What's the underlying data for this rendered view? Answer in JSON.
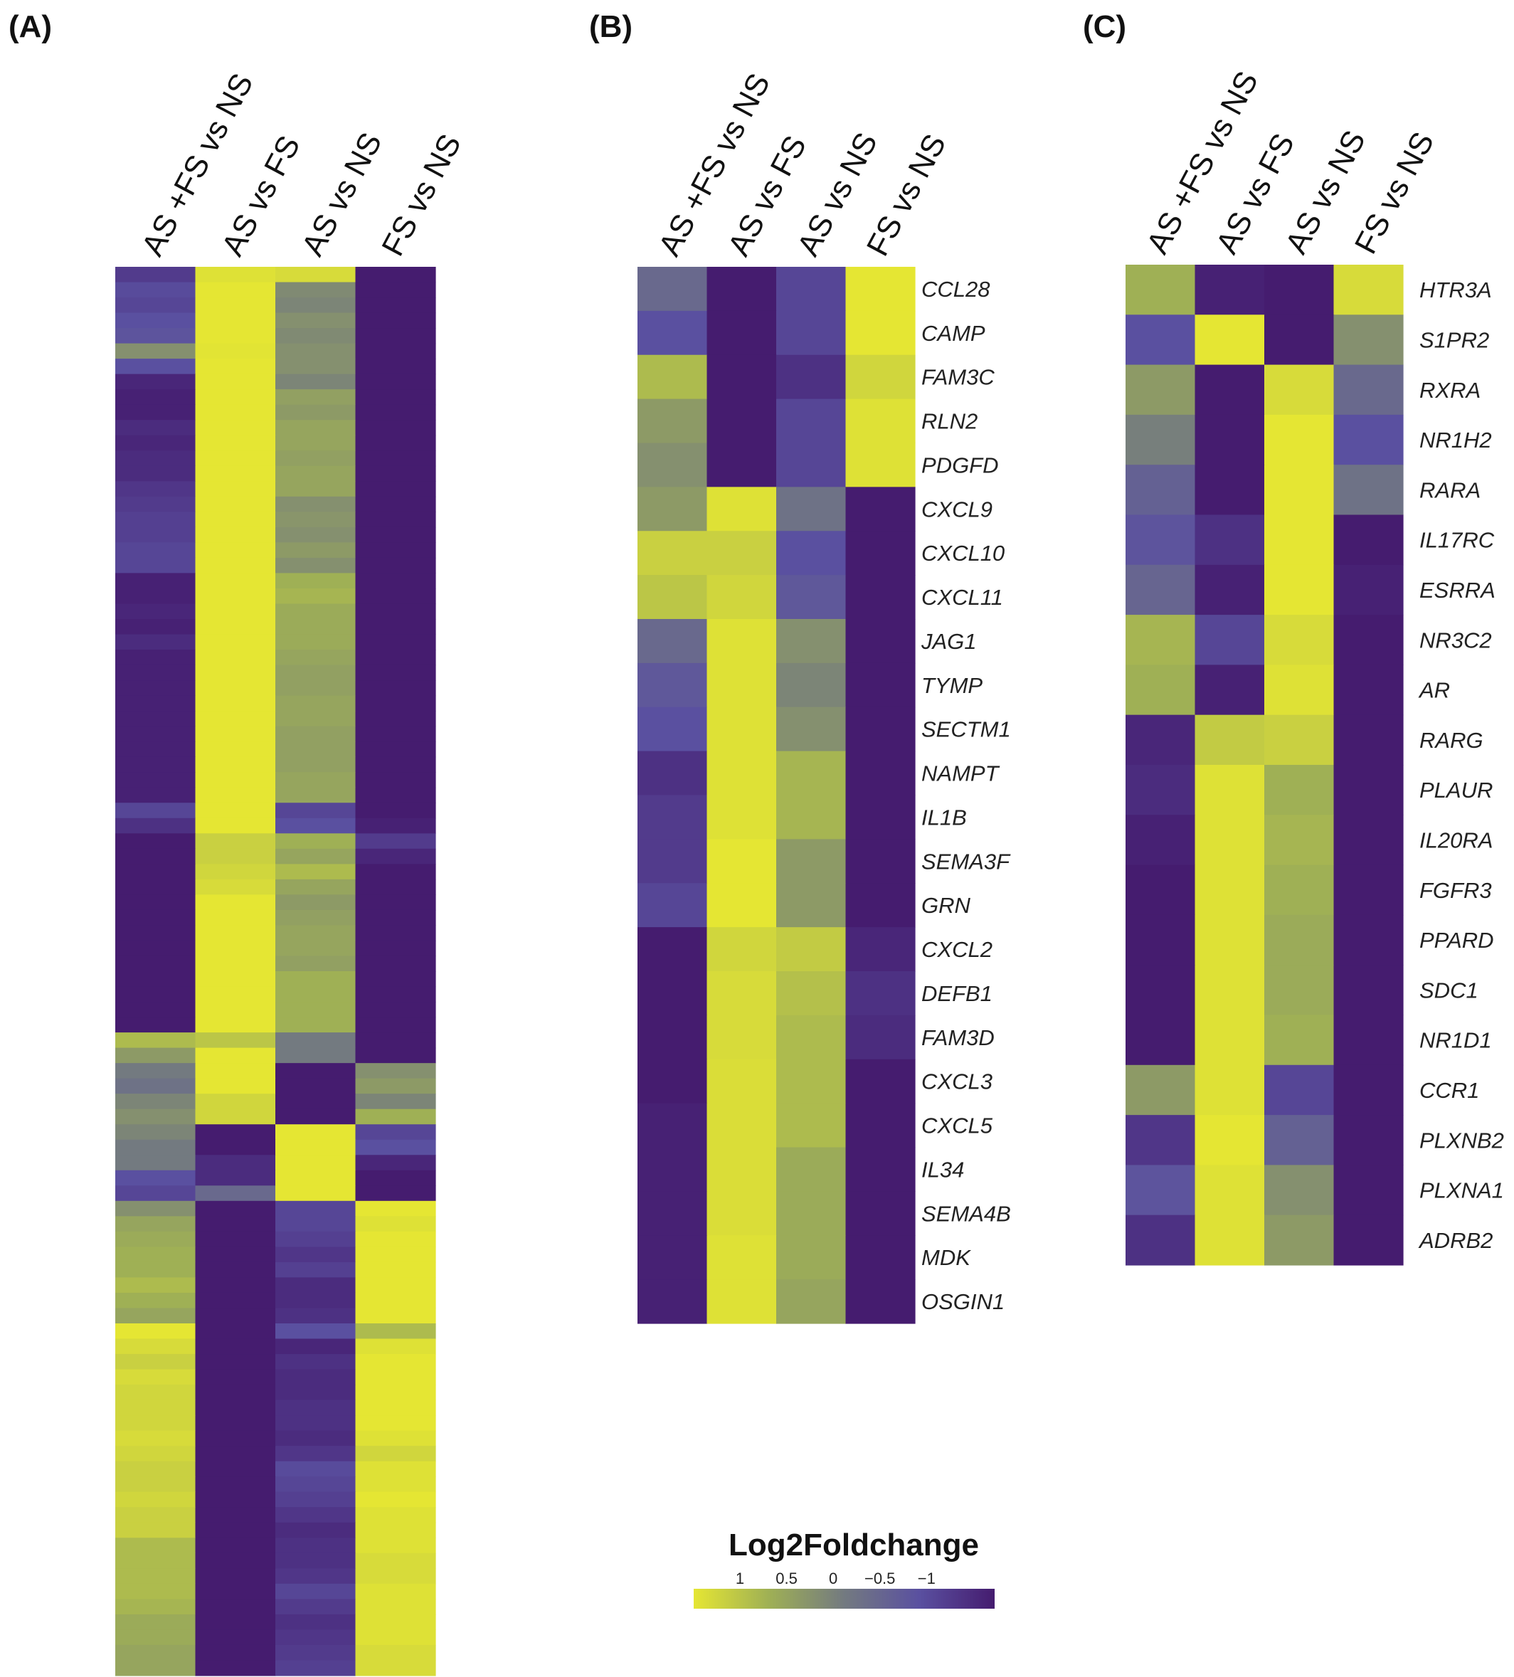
{
  "chart_data": [
    {
      "type": "heatmap",
      "panel": "(A)",
      "columns": [
        "AS +FS vs NS",
        "AS  vs FS",
        "AS  vs NS",
        "FS  vs NS"
      ],
      "rows": [],
      "values": [
        [
          -0.7,
          0.95,
          0.9,
          -1
        ],
        [
          -0.55,
          1,
          0.15,
          -1
        ],
        [
          -0.6,
          1,
          0.1,
          -1
        ],
        [
          -0.5,
          1,
          0.2,
          -1
        ],
        [
          -0.45,
          1,
          0.15,
          -1
        ],
        [
          0.2,
          0.98,
          0.2,
          -1
        ],
        [
          -0.5,
          1,
          0.2,
          -1
        ],
        [
          -0.9,
          1,
          0.1,
          -1
        ],
        [
          -0.95,
          1,
          0.35,
          -1
        ],
        [
          -0.95,
          1,
          0.3,
          -1
        ],
        [
          -0.85,
          1,
          0.4,
          -1
        ],
        [
          -0.9,
          1,
          0.4,
          -1
        ],
        [
          -0.85,
          1,
          0.35,
          -1
        ],
        [
          -0.85,
          1,
          0.4,
          -1
        ],
        [
          -0.75,
          1,
          0.4,
          -1
        ],
        [
          -0.7,
          1,
          0.2,
          -1
        ],
        [
          -0.65,
          1,
          0.25,
          -1
        ],
        [
          -0.65,
          1,
          0.2,
          -1
        ],
        [
          -0.6,
          1,
          0.3,
          -1
        ],
        [
          -0.6,
          1,
          0.2,
          -1
        ],
        [
          -0.95,
          1,
          0.5,
          -1
        ],
        [
          -0.95,
          1,
          0.55,
          -1
        ],
        [
          -0.9,
          1,
          0.45,
          -1
        ],
        [
          -0.95,
          1,
          0.45,
          -1
        ],
        [
          -0.85,
          1,
          0.45,
          -1
        ],
        [
          -0.95,
          1,
          0.4,
          -1
        ],
        [
          -0.95,
          1,
          0.35,
          -1
        ],
        [
          -0.95,
          1,
          0.35,
          -1
        ],
        [
          -0.95,
          1,
          0.4,
          -1
        ],
        [
          -0.95,
          1,
          0.4,
          -1
        ],
        [
          -0.95,
          1,
          0.35,
          -1
        ],
        [
          -0.95,
          1,
          0.35,
          -1
        ],
        [
          -0.95,
          1,
          0.35,
          -1
        ],
        [
          -0.95,
          1,
          0.4,
          -1
        ],
        [
          -0.95,
          1,
          0.4,
          -1
        ],
        [
          -0.6,
          1,
          -0.6,
          -1
        ],
        [
          -0.8,
          1,
          -0.5,
          -0.95
        ],
        [
          -1,
          0.8,
          0.5,
          -0.7
        ],
        [
          -1,
          0.8,
          0.4,
          -0.9
        ],
        [
          -1,
          0.85,
          0.6,
          -1
        ],
        [
          -1,
          0.9,
          0.4,
          -1
        ],
        [
          -1,
          1,
          0.3,
          -1
        ],
        [
          -1,
          1,
          0.35,
          -1
        ],
        [
          -1,
          1,
          0.4,
          -1
        ],
        [
          -1,
          1,
          0.4,
          -1
        ],
        [
          -1,
          1,
          0.35,
          -1
        ],
        [
          -1,
          1,
          0.5,
          -1
        ],
        [
          -1,
          1,
          0.5,
          -1
        ],
        [
          -1,
          1,
          0.5,
          -1
        ],
        [
          -1,
          1,
          0.5,
          -1
        ],
        [
          0.6,
          0.7,
          0,
          -1
        ],
        [
          0.3,
          1,
          0,
          -1
        ],
        [
          0,
          1,
          -1,
          0.2
        ],
        [
          -0.1,
          1,
          -1,
          0.3
        ],
        [
          0.1,
          0.85,
          -1,
          0.1
        ],
        [
          0.2,
          0.85,
          -1,
          0.5
        ],
        [
          0.1,
          -1,
          1,
          -0.6
        ],
        [
          0,
          -1,
          1,
          -0.5
        ],
        [
          0,
          -0.85,
          1,
          -0.9
        ],
        [
          -0.5,
          -0.85,
          1,
          -1
        ],
        [
          -0.6,
          -0.2,
          1,
          -1
        ],
        [
          0.2,
          -1,
          -0.6,
          1
        ],
        [
          0.4,
          -1,
          -0.6,
          0.95
        ],
        [
          0.45,
          -1,
          -0.65,
          1
        ],
        [
          0.5,
          -1,
          -0.75,
          1
        ],
        [
          0.5,
          -1,
          -0.65,
          1
        ],
        [
          0.6,
          -1,
          -0.85,
          1
        ],
        [
          0.5,
          -1,
          -0.85,
          1
        ],
        [
          0.4,
          -1,
          -0.8,
          1
        ],
        [
          1,
          -1,
          -0.5,
          0.6
        ],
        [
          0.9,
          -1,
          -0.9,
          0.95
        ],
        [
          0.8,
          -1,
          -0.8,
          1
        ],
        [
          0.9,
          -1,
          -0.85,
          1
        ],
        [
          0.85,
          -1,
          -0.85,
          1
        ],
        [
          0.85,
          -1,
          -0.8,
          1
        ],
        [
          0.85,
          -1,
          -0.8,
          1
        ],
        [
          0.9,
          -1,
          -0.85,
          0.95
        ],
        [
          0.85,
          -1,
          -0.75,
          0.85
        ],
        [
          0.8,
          -1,
          -0.55,
          0.95
        ],
        [
          0.8,
          -1,
          -0.6,
          0.95
        ],
        [
          0.85,
          -1,
          -0.65,
          1
        ],
        [
          0.8,
          -1,
          -0.75,
          0.95
        ],
        [
          0.8,
          -1,
          -0.85,
          0.95
        ],
        [
          0.6,
          -1,
          -0.8,
          0.95
        ],
        [
          0.6,
          -1,
          -0.8,
          0.9
        ],
        [
          0.6,
          -1,
          -0.75,
          0.9
        ],
        [
          0.6,
          -1,
          -0.6,
          0.95
        ],
        [
          0.55,
          -1,
          -0.7,
          0.95
        ],
        [
          0.45,
          -1,
          -0.8,
          0.95
        ],
        [
          0.45,
          -1,
          -0.75,
          0.95
        ],
        [
          0.4,
          -1,
          -0.7,
          0.9
        ],
        [
          0.4,
          -1,
          -0.65,
          0.9
        ]
      ]
    },
    {
      "type": "heatmap",
      "panel": "(B)",
      "columns": [
        "AS +FS vs NS",
        "AS  vs FS",
        "AS  vs NS",
        "FS  vs NS"
      ],
      "rows": [
        "CCL28",
        "CAMP",
        "FAM3C",
        "RLN2",
        "PDGFD",
        "CXCL9",
        "CXCL10",
        "CXCL11",
        "JAG1",
        "TYMP",
        "SECTM1",
        "NAMPT",
        "IL1B",
        "SEMA3F",
        "GRN",
        "CXCL2",
        "DEFB1",
        "FAM3D",
        "CXCL3",
        "CXCL5",
        "IL34",
        "SEMA4B",
        "MDK",
        "OSGIN1"
      ],
      "values": [
        [
          -0.2,
          -1,
          -0.6,
          1.0
        ],
        [
          -0.5,
          -1,
          -0.6,
          1.0
        ],
        [
          0.6,
          -1,
          -0.8,
          0.85
        ],
        [
          0.3,
          -1,
          -0.6,
          0.95
        ],
        [
          0.2,
          -1,
          -0.6,
          0.95
        ],
        [
          0.3,
          0.95,
          -0.1,
          -1
        ],
        [
          0.8,
          0.8,
          -0.5,
          -1
        ],
        [
          0.7,
          0.85,
          -0.4,
          -1
        ],
        [
          -0.2,
          0.95,
          0.2,
          -1
        ],
        [
          -0.4,
          0.95,
          0.1,
          -1
        ],
        [
          -0.5,
          0.95,
          0.2,
          -1
        ],
        [
          -0.8,
          0.95,
          0.55,
          -1
        ],
        [
          -0.7,
          0.95,
          0.55,
          -1
        ],
        [
          -0.7,
          1.0,
          0.3,
          -1
        ],
        [
          -0.6,
          1.0,
          0.3,
          -1
        ],
        [
          -1,
          0.85,
          0.75,
          -0.9
        ],
        [
          -1,
          0.9,
          0.65,
          -0.8
        ],
        [
          -1,
          0.9,
          0.6,
          -0.85
        ],
        [
          -1,
          0.92,
          0.6,
          -1
        ],
        [
          -0.95,
          0.92,
          0.6,
          -1
        ],
        [
          -0.95,
          0.92,
          0.45,
          -1
        ],
        [
          -0.95,
          0.92,
          0.45,
          -1
        ],
        [
          -0.95,
          0.95,
          0.45,
          -1
        ],
        [
          -0.95,
          0.95,
          0.4,
          -1
        ]
      ]
    },
    {
      "type": "heatmap",
      "panel": "(C)",
      "columns": [
        "AS +FS vs NS",
        "AS  vs FS",
        "AS  vs NS",
        "FS  vs NS"
      ],
      "rows": [
        "HTR3A",
        "S1PR2",
        "RXRA",
        "NR1H2",
        "RARA",
        "IL17RC",
        "ESRRA",
        "NR3C2",
        "AR",
        "RARG",
        "PLAUR",
        "IL20RA",
        "FGFR3",
        "PPARD",
        "SDC1",
        "NR1D1",
        "CCR1",
        "PLXNB2",
        "PLXNA1",
        "ADRB2"
      ],
      "values": [
        [
          0.5,
          -0.95,
          -1,
          0.9
        ],
        [
          -0.5,
          1.0,
          -1,
          0.2
        ],
        [
          0.3,
          -1,
          0.9,
          -0.2
        ],
        [
          0.05,
          -1,
          1.0,
          -0.5
        ],
        [
          -0.3,
          -1,
          1.0,
          -0.1
        ],
        [
          -0.45,
          -0.8,
          1.0,
          -1
        ],
        [
          -0.25,
          -0.95,
          1.0,
          -0.95
        ],
        [
          0.55,
          -0.6,
          0.9,
          -1
        ],
        [
          0.5,
          -0.95,
          0.95,
          -1
        ],
        [
          -0.9,
          0.75,
          0.8,
          -1
        ],
        [
          -0.85,
          0.95,
          0.5,
          -1
        ],
        [
          -0.95,
          0.95,
          0.55,
          -1
        ],
        [
          -1,
          0.95,
          0.5,
          -1
        ],
        [
          -1,
          0.95,
          0.45,
          -1
        ],
        [
          -1,
          0.95,
          0.45,
          -1
        ],
        [
          -1,
          0.95,
          0.5,
          -1
        ],
        [
          0.3,
          0.95,
          -0.6,
          -1
        ],
        [
          -0.75,
          1.0,
          -0.3,
          -1
        ],
        [
          -0.45,
          0.95,
          0.2,
          -1
        ],
        [
          -0.8,
          0.95,
          0.3,
          -1
        ]
      ]
    }
  ],
  "panels": {
    "a": "(A)",
    "b": "(B)",
    "c": "(C)"
  },
  "legend": {
    "title": "Log2Foldchange",
    "ticks": [
      "1",
      "0.5",
      "0",
      "−0.5",
      "−1"
    ],
    "tick_values": [
      1,
      0.5,
      0,
      -0.5,
      -1
    ],
    "colors": {
      "high": "#e5e633",
      "mid": "#7f8a79",
      "low": "#451c6f"
    }
  }
}
